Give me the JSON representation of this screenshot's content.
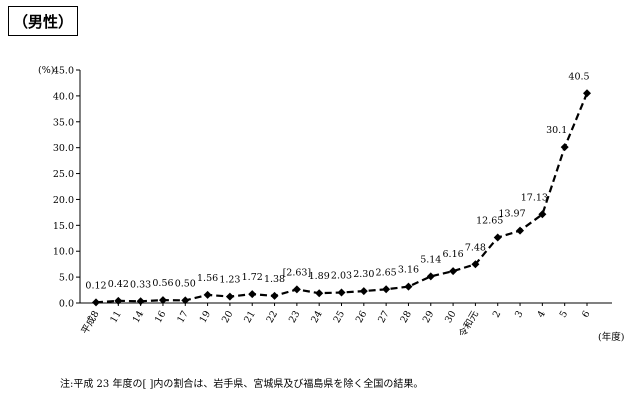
{
  "header": {
    "gender_label": "（男性）"
  },
  "chart_data": {
    "type": "line",
    "ylabel": "(%)",
    "xlabel": "(年度)",
    "ylim": [
      0,
      45
    ],
    "yticks": [
      "0.0",
      "5.0",
      "10.0",
      "15.0",
      "20.0",
      "25.0",
      "30.0",
      "35.0",
      "40.0",
      "45.0"
    ],
    "grid": false,
    "categories": [
      "平成8",
      "11",
      "14",
      "16",
      "17",
      "19",
      "20",
      "21",
      "22",
      "23",
      "24",
      "25",
      "26",
      "27",
      "28",
      "29",
      "30",
      "令和元",
      "2",
      "3",
      "4",
      "5",
      "6"
    ],
    "values": [
      0.12,
      0.42,
      0.33,
      0.56,
      0.5,
      1.56,
      1.23,
      1.72,
      1.38,
      2.63,
      1.89,
      2.03,
      2.3,
      2.65,
      3.16,
      5.14,
      6.16,
      7.48,
      12.65,
      13.97,
      17.13,
      30.1,
      40.5
    ],
    "data_labels": [
      "0.12",
      "0.42",
      "0.33",
      "0.56",
      "0.50",
      "1.56",
      "1.23",
      "1.72",
      "1.38",
      "[2.63]",
      "1.89",
      "2.03",
      "2.30",
      "2.65",
      "3.16",
      "5.14",
      "6.16",
      "7.48",
      "12.65",
      "13.97",
      "17.13",
      "30.1",
      "40.5"
    ]
  },
  "note": "注:平成 23 年度の[ ]内の割合は、岩手県、宮城県及び福島県を除く全国の結果。"
}
